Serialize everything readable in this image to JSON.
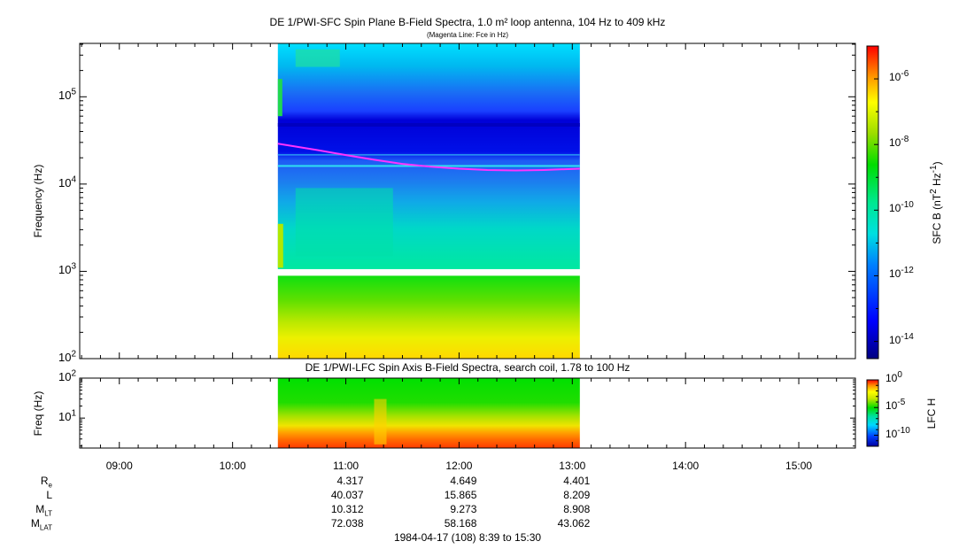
{
  "chart_data": [
    {
      "type": "heatmap",
      "title": "DE 1/PWI-SFC  Spin Plane B-Field Spectra, 1.0 m² loop antenna, 104 Hz to 409 kHz",
      "subtitle": "(Magenta Line: Fce in Hz)",
      "ylabel": "Frequency (Hz)",
      "yscale": "log",
      "ylim": [
        100,
        409000
      ],
      "yticks": [
        {
          "value": 100,
          "base": "10",
          "exp": "2"
        },
        {
          "value": 1000,
          "base": "10",
          "exp": "3"
        },
        {
          "value": 10000,
          "base": "10",
          "exp": "4"
        },
        {
          "value": 100000,
          "base": "10",
          "exp": "5"
        }
      ],
      "data_time_range": [
        "10:24",
        "13:04"
      ],
      "gap_hz": [
        890,
        1060
      ],
      "fce_line": {
        "color": "#ff33ff",
        "x": [
          "10:24",
          "10:45",
          "11:00",
          "11:15",
          "11:30",
          "11:45",
          "12:00",
          "12:15",
          "12:30",
          "12:45",
          "13:04"
        ],
        "y": [
          29000,
          24500,
          21500,
          19000,
          17000,
          15800,
          15000,
          14500,
          14300,
          14500,
          15000
        ]
      },
      "colorbar": {
        "label_base": "SFC B (nT",
        "label_exp1": "2",
        "label_mid": " Hz",
        "label_exp2": "-1",
        "label_end": ")",
        "scale": "log",
        "range": [
          3e-15,
          1e-05
        ],
        "ticks": [
          {
            "value": 1e-06,
            "base": "10",
            "exp": "-6"
          },
          {
            "value": 1e-08,
            "base": "10",
            "exp": "-8"
          },
          {
            "value": 1e-10,
            "base": "10",
            "exp": "-10"
          },
          {
            "value": 1e-12,
            "base": "10",
            "exp": "-12"
          },
          {
            "value": 1e-14,
            "base": "10",
            "exp": "-14"
          }
        ]
      }
    },
    {
      "type": "heatmap",
      "title": "DE 1/PWI-LFC  Spin Axis B-Field Spectra, search coil, 1.78 to 100 Hz",
      "ylabel": "Freq (Hz)",
      "yscale": "log",
      "ylim": [
        1.78,
        100
      ],
      "yticks": [
        {
          "value": 10,
          "base": "10",
          "exp": "1"
        },
        {
          "value": 100,
          "base": "10",
          "exp": "2"
        }
      ],
      "data_time_range": [
        "10:24",
        "13:04"
      ],
      "colorbar": {
        "label": "LFC H",
        "scale": "log",
        "range": [
          1e-12,
          1
        ],
        "ticks": [
          {
            "value": 1,
            "base": "10",
            "exp": "0"
          },
          {
            "value": 1e-05,
            "base": "10",
            "exp": "-5"
          },
          {
            "value": 1e-10,
            "base": "10",
            "exp": "-10"
          }
        ]
      }
    }
  ],
  "time_axis": {
    "range": [
      "08:39",
      "15:30"
    ],
    "labels": [
      "09:00",
      "10:00",
      "11:00",
      "12:00",
      "13:00",
      "14:00",
      "15:00"
    ]
  },
  "ephemeris": {
    "rows": [
      {
        "label": "R",
        "sub": "e",
        "values": [
          "4.317",
          "4.649",
          "4.401"
        ]
      },
      {
        "label": "L",
        "sub": "",
        "values": [
          "40.037",
          "15.865",
          "8.209"
        ]
      },
      {
        "label": "M",
        "sub": "LT",
        "values": [
          "10.312",
          "9.273",
          "8.908"
        ]
      },
      {
        "label": "M",
        "sub": "LAT",
        "values": [
          "72.038",
          "58.168",
          "43.062"
        ]
      }
    ],
    "times": [
      "11:00",
      "12:00",
      "13:00"
    ]
  },
  "footer": "1984-04-17 (108) 8:39 to 15:30"
}
